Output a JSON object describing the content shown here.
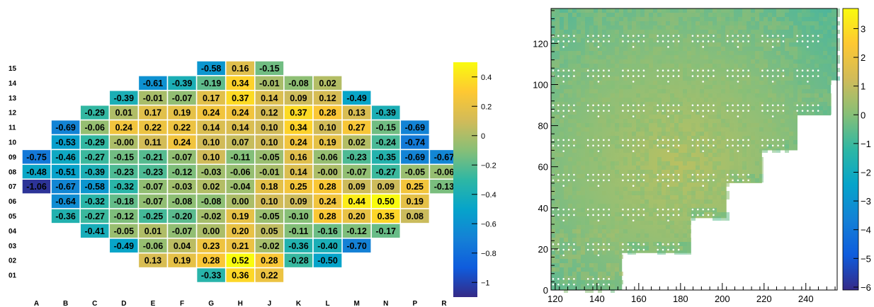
{
  "chart_data": [
    {
      "type": "heatmap",
      "columns": [
        "A",
        "B",
        "C",
        "D",
        "E",
        "F",
        "G",
        "H",
        "J",
        "K",
        "L",
        "M",
        "N",
        "P",
        "R"
      ],
      "rows": [
        "15",
        "14",
        "13",
        "12",
        "11",
        "10",
        "09",
        "08",
        "07",
        "06",
        "05",
        "04",
        "03",
        "02",
        "01"
      ],
      "cells": [
        {
          "row": "15",
          "col": "G",
          "value": "-0.58"
        },
        {
          "row": "15",
          "col": "H",
          "value": "0.16"
        },
        {
          "row": "15",
          "col": "J",
          "value": "-0.15"
        },
        {
          "row": "14",
          "col": "E",
          "value": "-0.61"
        },
        {
          "row": "14",
          "col": "F",
          "value": "-0.39"
        },
        {
          "row": "14",
          "col": "G",
          "value": "-0.19"
        },
        {
          "row": "14",
          "col": "H",
          "value": "0.34"
        },
        {
          "row": "14",
          "col": "J",
          "value": "-0.01"
        },
        {
          "row": "14",
          "col": "K",
          "value": "-0.08"
        },
        {
          "row": "14",
          "col": "L",
          "value": "0.02"
        },
        {
          "row": "13",
          "col": "D",
          "value": "-0.39"
        },
        {
          "row": "13",
          "col": "E",
          "value": "-0.01"
        },
        {
          "row": "13",
          "col": "F",
          "value": "-0.07"
        },
        {
          "row": "13",
          "col": "G",
          "value": "0.17"
        },
        {
          "row": "13",
          "col": "H",
          "value": "0.37"
        },
        {
          "row": "13",
          "col": "J",
          "value": "0.14"
        },
        {
          "row": "13",
          "col": "K",
          "value": "0.09"
        },
        {
          "row": "13",
          "col": "L",
          "value": "0.12"
        },
        {
          "row": "13",
          "col": "M",
          "value": "-0.49"
        },
        {
          "row": "12",
          "col": "C",
          "value": "-0.29"
        },
        {
          "row": "12",
          "col": "D",
          "value": "0.01"
        },
        {
          "row": "12",
          "col": "E",
          "value": "0.17"
        },
        {
          "row": "12",
          "col": "F",
          "value": "0.19"
        },
        {
          "row": "12",
          "col": "G",
          "value": "0.24"
        },
        {
          "row": "12",
          "col": "H",
          "value": "0.24"
        },
        {
          "row": "12",
          "col": "J",
          "value": "0.12"
        },
        {
          "row": "12",
          "col": "K",
          "value": "0.37"
        },
        {
          "row": "12",
          "col": "L",
          "value": "0.28"
        },
        {
          "row": "12",
          "col": "M",
          "value": "0.13"
        },
        {
          "row": "12",
          "col": "N",
          "value": "-0.39"
        },
        {
          "row": "11",
          "col": "B",
          "value": "-0.69"
        },
        {
          "row": "11",
          "col": "C",
          "value": "-0.06"
        },
        {
          "row": "11",
          "col": "D",
          "value": "0.24"
        },
        {
          "row": "11",
          "col": "E",
          "value": "0.22"
        },
        {
          "row": "11",
          "col": "F",
          "value": "0.22"
        },
        {
          "row": "11",
          "col": "G",
          "value": "0.14"
        },
        {
          "row": "11",
          "col": "H",
          "value": "0.14"
        },
        {
          "row": "11",
          "col": "J",
          "value": "0.10"
        },
        {
          "row": "11",
          "col": "K",
          "value": "0.34"
        },
        {
          "row": "11",
          "col": "L",
          "value": "0.10"
        },
        {
          "row": "11",
          "col": "M",
          "value": "0.27"
        },
        {
          "row": "11",
          "col": "N",
          "value": "-0.15"
        },
        {
          "row": "11",
          "col": "P",
          "value": "-0.69"
        },
        {
          "row": "10",
          "col": "B",
          "value": "-0.53"
        },
        {
          "row": "10",
          "col": "C",
          "value": "-0.29"
        },
        {
          "row": "10",
          "col": "D",
          "value": "-0.00"
        },
        {
          "row": "10",
          "col": "E",
          "value": "0.11"
        },
        {
          "row": "10",
          "col": "F",
          "value": "0.24"
        },
        {
          "row": "10",
          "col": "G",
          "value": "0.10"
        },
        {
          "row": "10",
          "col": "H",
          "value": "0.07"
        },
        {
          "row": "10",
          "col": "J",
          "value": "0.10"
        },
        {
          "row": "10",
          "col": "K",
          "value": "0.24"
        },
        {
          "row": "10",
          "col": "L",
          "value": "0.19"
        },
        {
          "row": "10",
          "col": "M",
          "value": "0.02"
        },
        {
          "row": "10",
          "col": "N",
          "value": "-0.24"
        },
        {
          "row": "10",
          "col": "P",
          "value": "-0.74"
        },
        {
          "row": "09",
          "col": "A",
          "value": "-0.75"
        },
        {
          "row": "09",
          "col": "B",
          "value": "-0.46"
        },
        {
          "row": "09",
          "col": "C",
          "value": "-0.27"
        },
        {
          "row": "09",
          "col": "D",
          "value": "-0.15"
        },
        {
          "row": "09",
          "col": "E",
          "value": "-0.21"
        },
        {
          "row": "09",
          "col": "F",
          "value": "-0.07"
        },
        {
          "row": "09",
          "col": "G",
          "value": "0.10"
        },
        {
          "row": "09",
          "col": "H",
          "value": "-0.11"
        },
        {
          "row": "09",
          "col": "J",
          "value": "-0.05"
        },
        {
          "row": "09",
          "col": "K",
          "value": "0.16"
        },
        {
          "row": "09",
          "col": "L",
          "value": "-0.06"
        },
        {
          "row": "09",
          "col": "M",
          "value": "-0.23"
        },
        {
          "row": "09",
          "col": "N",
          "value": "-0.35"
        },
        {
          "row": "09",
          "col": "P",
          "value": "-0.69"
        },
        {
          "row": "09",
          "col": "R",
          "value": "-0.67"
        },
        {
          "row": "08",
          "col": "A",
          "value": "-0.48"
        },
        {
          "row": "08",
          "col": "B",
          "value": "-0.51"
        },
        {
          "row": "08",
          "col": "C",
          "value": "-0.39"
        },
        {
          "row": "08",
          "col": "D",
          "value": "-0.23"
        },
        {
          "row": "08",
          "col": "E",
          "value": "-0.23"
        },
        {
          "row": "08",
          "col": "F",
          "value": "-0.12"
        },
        {
          "row": "08",
          "col": "G",
          "value": "-0.03"
        },
        {
          "row": "08",
          "col": "H",
          "value": "-0.06"
        },
        {
          "row": "08",
          "col": "J",
          "value": "-0.01"
        },
        {
          "row": "08",
          "col": "K",
          "value": "0.14"
        },
        {
          "row": "08",
          "col": "L",
          "value": "-0.00"
        },
        {
          "row": "08",
          "col": "M",
          "value": "-0.07"
        },
        {
          "row": "08",
          "col": "N",
          "value": "-0.27"
        },
        {
          "row": "08",
          "col": "P",
          "value": "-0.05"
        },
        {
          "row": "08",
          "col": "R",
          "value": "-0.06"
        },
        {
          "row": "07",
          "col": "A",
          "value": "-1.06"
        },
        {
          "row": "07",
          "col": "B",
          "value": "-0.67"
        },
        {
          "row": "07",
          "col": "C",
          "value": "-0.58"
        },
        {
          "row": "07",
          "col": "D",
          "value": "-0.32"
        },
        {
          "row": "07",
          "col": "E",
          "value": "-0.07"
        },
        {
          "row": "07",
          "col": "F",
          "value": "-0.03"
        },
        {
          "row": "07",
          "col": "G",
          "value": "0.02"
        },
        {
          "row": "07",
          "col": "H",
          "value": "-0.04"
        },
        {
          "row": "07",
          "col": "J",
          "value": "0.18"
        },
        {
          "row": "07",
          "col": "K",
          "value": "0.25"
        },
        {
          "row": "07",
          "col": "L",
          "value": "0.28"
        },
        {
          "row": "07",
          "col": "M",
          "value": "0.09"
        },
        {
          "row": "07",
          "col": "N",
          "value": "0.09"
        },
        {
          "row": "07",
          "col": "P",
          "value": "0.25"
        },
        {
          "row": "07",
          "col": "R",
          "value": "-0.13"
        },
        {
          "row": "06",
          "col": "B",
          "value": "-0.64"
        },
        {
          "row": "06",
          "col": "C",
          "value": "-0.32"
        },
        {
          "row": "06",
          "col": "D",
          "value": "-0.18"
        },
        {
          "row": "06",
          "col": "E",
          "value": "-0.07"
        },
        {
          "row": "06",
          "col": "F",
          "value": "-0.08"
        },
        {
          "row": "06",
          "col": "G",
          "value": "-0.08"
        },
        {
          "row": "06",
          "col": "H",
          "value": "0.00"
        },
        {
          "row": "06",
          "col": "J",
          "value": "0.10"
        },
        {
          "row": "06",
          "col": "K",
          "value": "0.09"
        },
        {
          "row": "06",
          "col": "L",
          "value": "0.24"
        },
        {
          "row": "06",
          "col": "M",
          "value": "0.44"
        },
        {
          "row": "06",
          "col": "N",
          "value": "0.50"
        },
        {
          "row": "06",
          "col": "P",
          "value": "0.19"
        },
        {
          "row": "05",
          "col": "B",
          "value": "-0.36"
        },
        {
          "row": "05",
          "col": "C",
          "value": "-0.27"
        },
        {
          "row": "05",
          "col": "D",
          "value": "-0.12"
        },
        {
          "row": "05",
          "col": "E",
          "value": "-0.25"
        },
        {
          "row": "05",
          "col": "F",
          "value": "-0.20"
        },
        {
          "row": "05",
          "col": "G",
          "value": "-0.02"
        },
        {
          "row": "05",
          "col": "H",
          "value": "0.19"
        },
        {
          "row": "05",
          "col": "J",
          "value": "-0.05"
        },
        {
          "row": "05",
          "col": "K",
          "value": "-0.10"
        },
        {
          "row": "05",
          "col": "L",
          "value": "0.28"
        },
        {
          "row": "05",
          "col": "M",
          "value": "0.20"
        },
        {
          "row": "05",
          "col": "N",
          "value": "0.35"
        },
        {
          "row": "05",
          "col": "P",
          "value": "0.08"
        },
        {
          "row": "04",
          "col": "C",
          "value": "-0.41"
        },
        {
          "row": "04",
          "col": "D",
          "value": "-0.05"
        },
        {
          "row": "04",
          "col": "E",
          "value": "0.01"
        },
        {
          "row": "04",
          "col": "F",
          "value": "-0.07"
        },
        {
          "row": "04",
          "col": "G",
          "value": "0.00"
        },
        {
          "row": "04",
          "col": "H",
          "value": "0.20"
        },
        {
          "row": "04",
          "col": "J",
          "value": "0.05"
        },
        {
          "row": "04",
          "col": "K",
          "value": "-0.11"
        },
        {
          "row": "04",
          "col": "L",
          "value": "-0.16"
        },
        {
          "row": "04",
          "col": "M",
          "value": "-0.12"
        },
        {
          "row": "04",
          "col": "N",
          "value": "-0.17"
        },
        {
          "row": "03",
          "col": "D",
          "value": "-0.49"
        },
        {
          "row": "03",
          "col": "E",
          "value": "-0.06"
        },
        {
          "row": "03",
          "col": "F",
          "value": "0.04"
        },
        {
          "row": "03",
          "col": "G",
          "value": "0.23"
        },
        {
          "row": "03",
          "col": "H",
          "value": "0.21"
        },
        {
          "row": "03",
          "col": "J",
          "value": "-0.02"
        },
        {
          "row": "03",
          "col": "K",
          "value": "-0.36"
        },
        {
          "row": "03",
          "col": "L",
          "value": "-0.40"
        },
        {
          "row": "03",
          "col": "M",
          "value": "-0.70"
        },
        {
          "row": "02",
          "col": "E",
          "value": "0.13"
        },
        {
          "row": "02",
          "col": "F",
          "value": "0.19"
        },
        {
          "row": "02",
          "col": "G",
          "value": "0.28"
        },
        {
          "row": "02",
          "col": "H",
          "value": "0.52"
        },
        {
          "row": "02",
          "col": "J",
          "value": "0.28"
        },
        {
          "row": "02",
          "col": "K",
          "value": "-0.28"
        },
        {
          "row": "02",
          "col": "L",
          "value": "-0.50"
        },
        {
          "row": "01",
          "col": "G",
          "value": "-0.33"
        },
        {
          "row": "01",
          "col": "H",
          "value": "0.36"
        },
        {
          "row": "01",
          "col": "J",
          "value": "0.22"
        }
      ],
      "colorbar": {
        "range": [
          -1.1,
          0.5
        ],
        "ticks": [
          "0.4",
          "0.2",
          "0",
          "−0.2",
          "−0.4",
          "−0.6",
          "−0.8",
          "−1"
        ],
        "tick_values": [
          0.4,
          0.2,
          0,
          -0.2,
          -0.4,
          -0.6,
          -0.8,
          -1
        ],
        "palette": [
          "#352a87",
          "#0f5cdd",
          "#1481d6",
          "#06a4ca",
          "#2eb7a4",
          "#87bf77",
          "#d1bb59",
          "#fec832",
          "#f9fb0e"
        ]
      }
    },
    {
      "type": "heatmap",
      "xlim": [
        118,
        255
      ],
      "ylim": [
        0,
        137
      ],
      "x_ticks": [
        "120",
        "140",
        "160",
        "180",
        "200",
        "220",
        "240"
      ],
      "x_tick_values": [
        120,
        140,
        160,
        180,
        200,
        220,
        240
      ],
      "y_ticks": [
        "0",
        "20",
        "40",
        "60",
        "80",
        "100",
        "120"
      ],
      "y_tick_values": [
        0,
        20,
        40,
        60,
        80,
        100,
        120
      ],
      "coverage_steps": [
        {
          "x_to": 152,
          "y_from": 0
        },
        {
          "x_to": 185,
          "y_from": 18
        },
        {
          "x_to": 202,
          "y_from": 35
        },
        {
          "x_to": 219,
          "y_from": 52
        },
        {
          "x_to": 236,
          "y_from": 68
        },
        {
          "x_to": 252,
          "y_from": 85
        },
        {
          "x_to": 255,
          "y_from": 102
        }
      ],
      "colorbar": {
        "range": [
          -6.1,
          3.7
        ],
        "ticks": [
          "3",
          "2",
          "1",
          "0",
          "−1",
          "−2",
          "−3",
          "−4",
          "−5",
          "−6"
        ],
        "tick_values": [
          3,
          2,
          1,
          0,
          -1,
          -2,
          -3,
          -4,
          -5,
          -6
        ],
        "palette": [
          "#352a87",
          "#0f5cdd",
          "#1481d6",
          "#06a4ca",
          "#2eb7a4",
          "#87bf77",
          "#d1bb59",
          "#fec832",
          "#f9fb0e"
        ]
      }
    }
  ]
}
